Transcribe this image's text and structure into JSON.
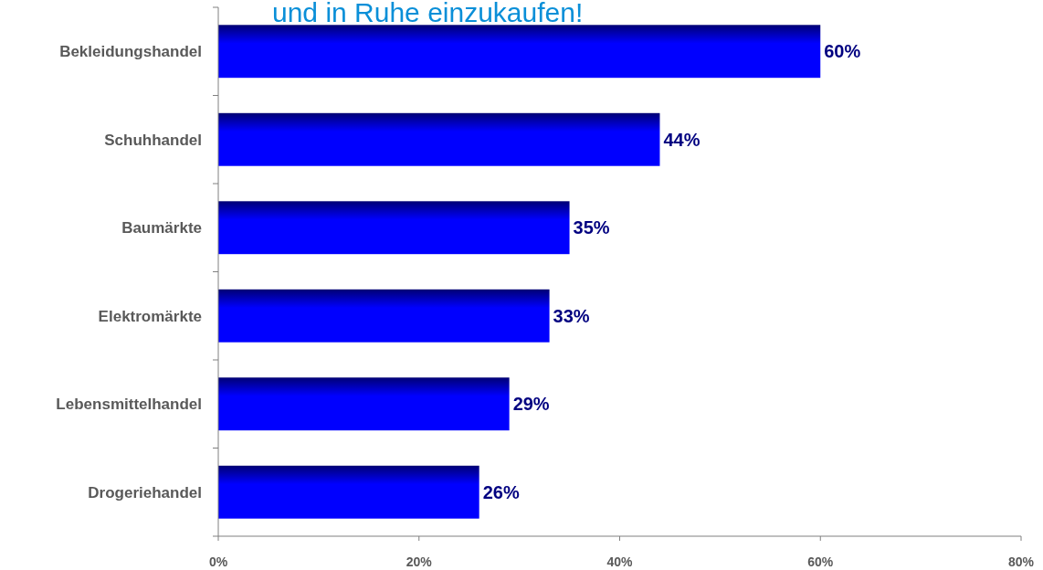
{
  "chart_data": {
    "type": "bar",
    "orientation": "horizontal",
    "title": "und in Ruhe einzukaufen!",
    "categories": [
      "Bekleidungshandel",
      "Schuhhandel",
      "Baumärkte",
      "Elektromärkte",
      "Lebensmittelhandel",
      "Drogeriehandel"
    ],
    "values": [
      60,
      44,
      35,
      33,
      29,
      26
    ],
    "color": "#0000ff",
    "value_labels": [
      "60%",
      "44%",
      "35%",
      "33%",
      "29%",
      "26%"
    ],
    "xlim": [
      0,
      80
    ],
    "xticks": [
      {
        "value": 0,
        "label": "0%"
      },
      {
        "value": 20,
        "label": "20%"
      },
      {
        "value": 40,
        "label": "40%"
      },
      {
        "value": 60,
        "label": "60%"
      },
      {
        "value": 80,
        "label": "80%"
      }
    ],
    "grid": false
  }
}
